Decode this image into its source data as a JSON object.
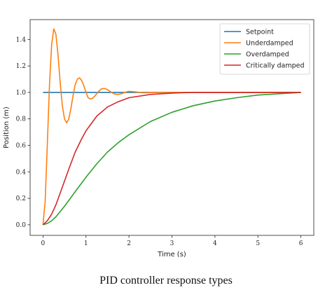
{
  "caption": "PID controller response types",
  "chart_data": {
    "type": "line",
    "xlabel": "Time (s)",
    "ylabel": "Position (m)",
    "xlim": [
      -0.3,
      6.3
    ],
    "ylim": [
      -0.08,
      1.55
    ],
    "x_ticks": [
      "0",
      "1",
      "2",
      "3",
      "4",
      "5",
      "6"
    ],
    "y_ticks": [
      "0.0",
      "0.2",
      "0.4",
      "0.6",
      "0.8",
      "1.0",
      "1.2",
      "1.4"
    ],
    "grid": false,
    "legend_position": "top-right",
    "series": [
      {
        "name": "Setpoint",
        "color": "#1f77b4",
        "x": [
          0,
          6
        ],
        "y": [
          1.0,
          1.0
        ]
      },
      {
        "name": "Underdamped",
        "color": "#ff7f0e",
        "x": [
          0,
          0.05,
          0.1,
          0.15,
          0.2,
          0.25,
          0.3,
          0.35,
          0.4,
          0.45,
          0.5,
          0.55,
          0.6,
          0.65,
          0.7,
          0.75,
          0.8,
          0.85,
          0.9,
          0.95,
          1.0,
          1.05,
          1.1,
          1.15,
          1.2,
          1.25,
          1.3,
          1.35,
          1.4,
          1.45,
          1.5,
          1.55,
          1.6,
          1.65,
          1.7,
          1.75,
          1.8,
          1.85,
          1.9,
          1.95,
          2.0,
          2.1,
          2.2,
          2.3,
          2.4,
          2.5,
          2.6,
          2.8,
          3.0,
          3.5,
          4.0,
          5.0,
          6.0
        ],
        "y": [
          0.0,
          0.18,
          0.6,
          1.05,
          1.36,
          1.48,
          1.44,
          1.28,
          1.07,
          0.9,
          0.8,
          0.77,
          0.8,
          0.88,
          0.98,
          1.06,
          1.1,
          1.11,
          1.09,
          1.05,
          1.0,
          0.96,
          0.95,
          0.955,
          0.97,
          0.99,
          1.01,
          1.025,
          1.03,
          1.028,
          1.02,
          1.01,
          1.0,
          0.99,
          0.986,
          0.985,
          0.988,
          0.993,
          1.0,
          1.005,
          1.008,
          1.006,
          1.002,
          0.998,
          0.997,
          0.999,
          1.001,
          1.0,
          1.0,
          1.0,
          1.0,
          1.0,
          1.0
        ]
      },
      {
        "name": "Overdamped",
        "color": "#2ca02c",
        "x": [
          0,
          0.1,
          0.2,
          0.3,
          0.4,
          0.5,
          0.75,
          1.0,
          1.25,
          1.5,
          1.75,
          2.0,
          2.5,
          3.0,
          3.5,
          4.0,
          4.5,
          5.0,
          5.5,
          6.0
        ],
        "y": [
          0.0,
          0.01,
          0.03,
          0.06,
          0.1,
          0.14,
          0.25,
          0.36,
          0.46,
          0.55,
          0.62,
          0.68,
          0.78,
          0.85,
          0.9,
          0.935,
          0.96,
          0.98,
          0.99,
          1.0
        ]
      },
      {
        "name": "Critically damped",
        "color": "#d62728",
        "x": [
          0,
          0.1,
          0.2,
          0.3,
          0.4,
          0.5,
          0.6,
          0.75,
          0.9,
          1.0,
          1.25,
          1.5,
          1.75,
          2.0,
          2.5,
          3.0,
          3.5,
          4.0,
          5.0,
          6.0
        ],
        "y": [
          0.0,
          0.03,
          0.08,
          0.15,
          0.24,
          0.33,
          0.42,
          0.55,
          0.65,
          0.71,
          0.82,
          0.89,
          0.93,
          0.96,
          0.985,
          0.995,
          1.0,
          1.0,
          1.0,
          1.0
        ]
      }
    ]
  }
}
